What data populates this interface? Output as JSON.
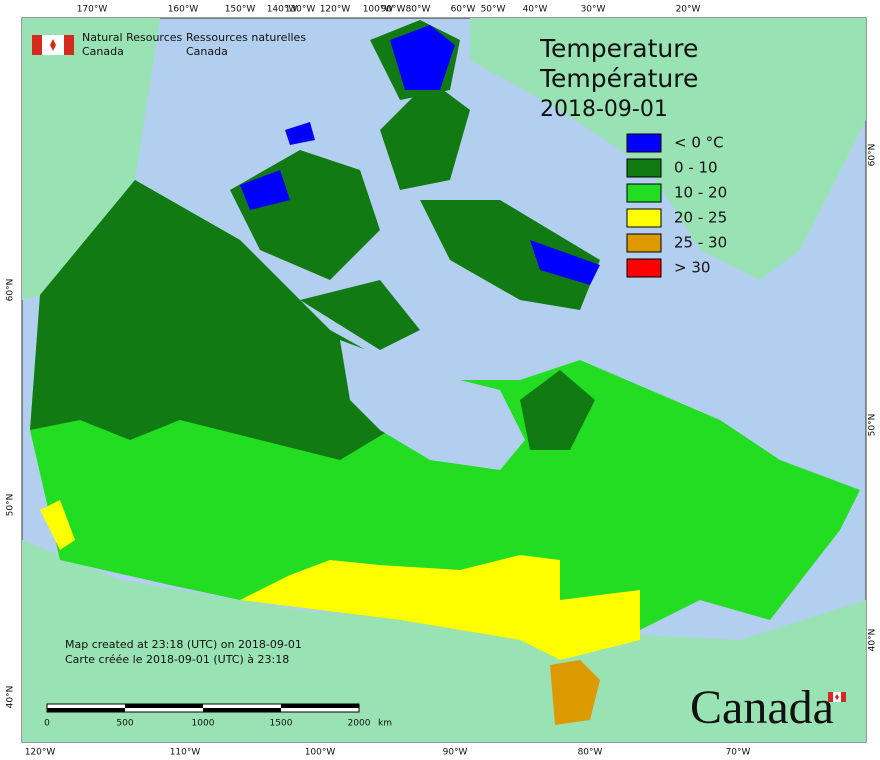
{
  "header": {
    "title_en": "Temperature",
    "title_fr": "Température",
    "date": "2018-09-01"
  },
  "agency": {
    "en_line1": "Natural Resources",
    "en_line2": "Canada",
    "fr_line1": "Ressources naturelles",
    "fr_line2": "Canada"
  },
  "legend": [
    {
      "label": "< 0 °C",
      "color": "#0000ff"
    },
    {
      "label": "0 - 10",
      "color": "#127a12"
    },
    {
      "label": "10 - 20",
      "color": "#22dd22"
    },
    {
      "label": "20 - 25",
      "color": "#ffff00"
    },
    {
      "label": "25 - 30",
      "color": "#dd9a00"
    },
    {
      "label": "> 30",
      "color": "#ff0000"
    }
  ],
  "top_longitudes": [
    "170°W",
    "160°W",
    "150°W",
    "140°W",
    "130°W",
    "120°W",
    "100°W",
    "90°W",
    "80°W",
    "60°W",
    "50°W",
    "40°W",
    "30°W",
    "20°W"
  ],
  "bottom_longitudes": [
    "120°W",
    "110°W",
    "100°W",
    "90°W",
    "80°W",
    "70°W"
  ],
  "left_latitudes": [
    "60°N",
    "50°N",
    "40°N"
  ],
  "right_latitudes": [
    "60°N",
    "50°N",
    "40°N"
  ],
  "credits": [
    "Map created at 23:18 (UTC) on 2018-09-01",
    "Carte créée le 2018-09-01 (UTC) à 23:18"
  ],
  "scale": {
    "ticks": [
      "0",
      "500",
      "1000",
      "1500",
      "2000"
    ],
    "unit": "km"
  },
  "wordmark": "Canada"
}
